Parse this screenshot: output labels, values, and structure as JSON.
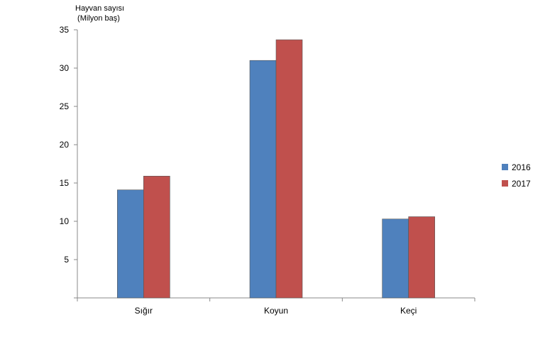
{
  "chart_data": {
    "type": "bar",
    "ylabel_lines": [
      "Hayvan sayısı",
      " (Milyon baş)"
    ],
    "categories": [
      "Sığır",
      "Koyun",
      "Keçi"
    ],
    "series": [
      {
        "name": "2016",
        "color": "#4F81BD",
        "values": [
          14.1,
          31.0,
          10.3
        ]
      },
      {
        "name": "2017",
        "color": "#C0504D",
        "values": [
          15.9,
          33.7,
          10.6
        ]
      }
    ],
    "ylim": [
      0,
      35
    ],
    "yticks": [
      5,
      10,
      15,
      20,
      25,
      30,
      35
    ],
    "grid": false,
    "legend": "right"
  }
}
